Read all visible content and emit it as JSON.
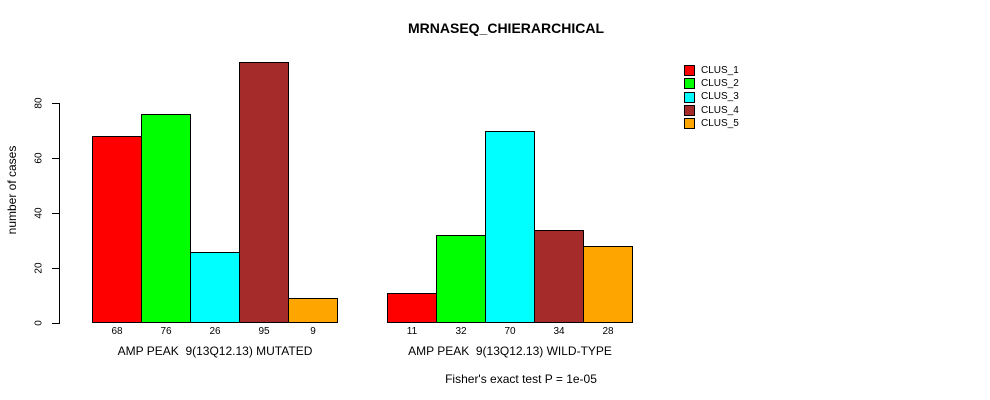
{
  "chart_data": {
    "type": "bar",
    "title": "MRNASEQ_CHIERARCHICAL",
    "ylabel": "number of cases",
    "xlabel": "",
    "ylim": [
      0,
      95
    ],
    "yticks": [
      0,
      20,
      40,
      60,
      80
    ],
    "grid": false,
    "legend_position": "right",
    "series_names": [
      "CLUS_1",
      "CLUS_2",
      "CLUS_3",
      "CLUS_4",
      "CLUS_5"
    ],
    "colors": [
      "#FF0000",
      "#00FF00",
      "#00FFFF",
      "#A52A2A",
      "#FFA500"
    ],
    "bar_border_color": "#000000",
    "groups": [
      {
        "label": "AMP PEAK  9(13Q12.13) MUTATED",
        "values": [
          68,
          76,
          26,
          95,
          9
        ]
      },
      {
        "label": "AMP PEAK  9(13Q12.13) WILD-TYPE",
        "values": [
          11,
          32,
          70,
          34,
          28
        ]
      }
    ],
    "annotation": "Fisher's exact test P = 1e-05"
  },
  "legend": {
    "entries": [
      {
        "label": "CLUS_1",
        "color": "#FF0000"
      },
      {
        "label": "CLUS_2",
        "color": "#00FF00"
      },
      {
        "label": "CLUS_3",
        "color": "#00FFFF"
      },
      {
        "label": "CLUS_4",
        "color": "#A52A2A"
      },
      {
        "label": "CLUS_5",
        "color": "#FFA500"
      }
    ]
  }
}
